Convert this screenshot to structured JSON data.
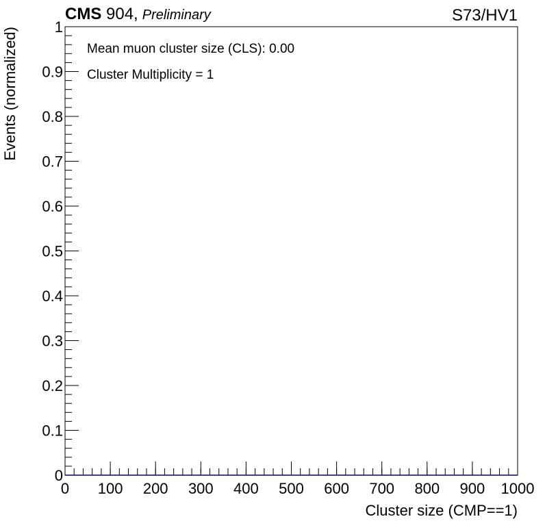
{
  "header": {
    "experiment": "CMS",
    "facility": " 904,",
    "status": "Preliminary",
    "tag": "S73/HV1"
  },
  "annotations": {
    "mean_cls": "Mean muon cluster size (CLS): 0.00",
    "cluster_multiplicity": "Cluster Multiplicity = 1"
  },
  "colors": {
    "frame": "#000000",
    "histogram_line": "#000080",
    "background": "#ffffff"
  },
  "chart_data": {
    "type": "bar",
    "title": "",
    "xlabel": "Cluster size (CMP==1)",
    "ylabel": "Events (normalized)",
    "xlim": [
      0,
      1000
    ],
    "ylim": [
      0,
      1
    ],
    "x_ticks": [
      "0",
      "100",
      "200",
      "300",
      "400",
      "500",
      "600",
      "700",
      "800",
      "900",
      "1000"
    ],
    "y_ticks": [
      "0",
      "0.1",
      "0.2",
      "0.3",
      "0.4",
      "0.5",
      "0.6",
      "0.7",
      "0.8",
      "0.9",
      "1"
    ],
    "series": [
      {
        "x": [
          0,
          1000
        ],
        "values": [
          0,
          0
        ]
      }
    ],
    "grid": false,
    "legend": "none"
  }
}
